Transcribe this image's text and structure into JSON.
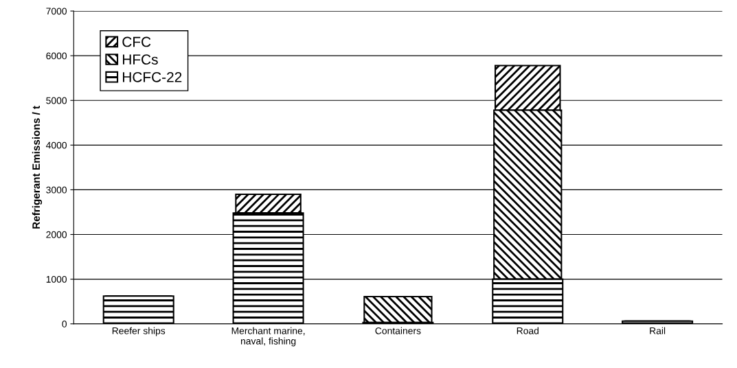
{
  "chart_data": {
    "type": "bar",
    "stacked": true,
    "ylabel": "Refrigerant Emissions / t",
    "categories": [
      "Reefer ships",
      "Merchant marine,\nnaval, fishing",
      "Containers",
      "Road",
      "Rail"
    ],
    "series": [
      {
        "name": "HCFC-22",
        "color": "#000000",
        "values": [
          620,
          2480,
          30,
          1000,
          60
        ]
      },
      {
        "name": "HFCs",
        "color": "#000000",
        "values": [
          0,
          0,
          580,
          3780,
          0
        ]
      },
      {
        "name": "CFC",
        "color": "#000000",
        "values": [
          0,
          420,
          0,
          1000,
          0
        ]
      }
    ],
    "ylim": [
      0,
      7000
    ],
    "yticks": [
      0,
      1000,
      2000,
      3000,
      4000,
      5000,
      6000,
      7000
    ],
    "grid": "y",
    "legend": "top left"
  }
}
